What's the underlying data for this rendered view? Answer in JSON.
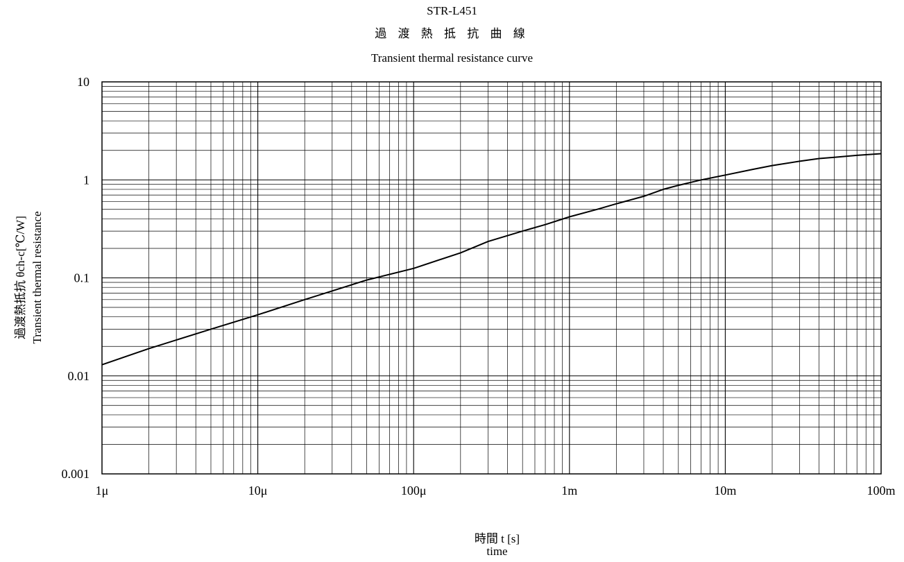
{
  "chart_data": {
    "type": "line",
    "title": "STR-L451",
    "subtitle_jp": "過 渡 熱 抵 抗 曲 線",
    "subtitle_en": "Transient thermal resistance curve",
    "ylabel_jp": "過渡熱抵抗 θch-c[℃/W]",
    "ylabel_en": "Transient thermal resistance",
    "xlabel_jp": "時間 t [s]",
    "xlabel_en": "time",
    "xscale": "log",
    "yscale": "log",
    "xlim": [
      1e-06,
      0.1
    ],
    "ylim": [
      0.001,
      10
    ],
    "grid": true,
    "x_ticks": [
      {
        "value": 1e-06,
        "label": "1μ"
      },
      {
        "value": 1e-05,
        "label": "10μ"
      },
      {
        "value": 0.0001,
        "label": "100μ"
      },
      {
        "value": 0.001,
        "label": "1m"
      },
      {
        "value": 0.01,
        "label": "10m"
      },
      {
        "value": 0.1,
        "label": "100m"
      }
    ],
    "y_ticks": [
      {
        "value": 0.001,
        "label": "0.001"
      },
      {
        "value": 0.01,
        "label": "0.01"
      },
      {
        "value": 0.1,
        "label": "0.1"
      },
      {
        "value": 1,
        "label": "1"
      },
      {
        "value": 10,
        "label": "10"
      }
    ],
    "series": [
      {
        "color": "#000000",
        "x": [
          1e-06,
          2e-06,
          5e-06,
          1e-05,
          2e-05,
          5e-05,
          0.0001,
          0.0002,
          0.0003,
          0.0005,
          0.0007,
          0.001,
          0.0015,
          0.002,
          0.003,
          0.004,
          0.005,
          0.007,
          0.01,
          0.015,
          0.02,
          0.03,
          0.04,
          0.05,
          0.07,
          0.1
        ],
        "y": [
          0.013,
          0.019,
          0.03,
          0.042,
          0.06,
          0.095,
          0.125,
          0.18,
          0.235,
          0.3,
          0.35,
          0.42,
          0.5,
          0.57,
          0.68,
          0.8,
          0.88,
          1.0,
          1.12,
          1.28,
          1.4,
          1.55,
          1.65,
          1.7,
          1.78,
          1.85
        ]
      }
    ]
  }
}
